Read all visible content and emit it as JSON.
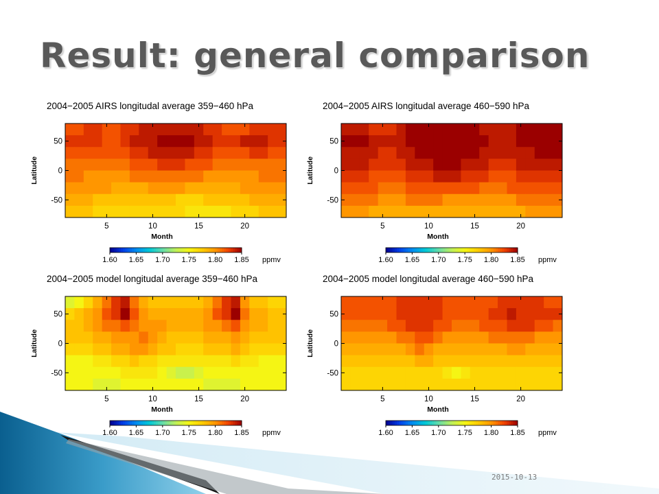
{
  "slide": {
    "title": "Result: general comparison",
    "footer_date": "2015-10-13"
  },
  "chart_data": [
    {
      "type": "heatmap",
      "title": "2004−2005 AIRS longitudal average 359−460 hPa",
      "xlabel": "Month",
      "ylabel": "Latitude",
      "xlim": [
        1,
        24
      ],
      "ylim": [
        -80,
        80
      ],
      "xticks": [
        5,
        10,
        15,
        20
      ],
      "yticks": [
        50,
        0,
        -50
      ],
      "colorbar": {
        "ticks": [
          "1.60",
          "1.65",
          "1.70",
          "1.75",
          "1.80",
          "1.85"
        ],
        "unit": "ppmv",
        "range": [
          1.6,
          1.85
        ]
      },
      "lat_bands": [
        70,
        50,
        30,
        10,
        -10,
        -30,
        -50,
        -70
      ],
      "values": [
        [
          1.82,
          1.82,
          1.83,
          1.83,
          1.82,
          1.82,
          1.83,
          1.83,
          1.84,
          1.84,
          1.84,
          1.84,
          1.84,
          1.84,
          1.84,
          1.83,
          1.83,
          1.82,
          1.82,
          1.82,
          1.83,
          1.83,
          1.83,
          1.83
        ],
        [
          1.83,
          1.83,
          1.83,
          1.83,
          1.82,
          1.82,
          1.83,
          1.84,
          1.84,
          1.84,
          1.85,
          1.85,
          1.85,
          1.85,
          1.84,
          1.84,
          1.83,
          1.83,
          1.83,
          1.84,
          1.84,
          1.84,
          1.83,
          1.83
        ],
        [
          1.82,
          1.82,
          1.82,
          1.82,
          1.82,
          1.82,
          1.82,
          1.83,
          1.83,
          1.84,
          1.84,
          1.84,
          1.84,
          1.84,
          1.83,
          1.83,
          1.82,
          1.82,
          1.82,
          1.82,
          1.83,
          1.83,
          1.82,
          1.82
        ],
        [
          1.81,
          1.81,
          1.81,
          1.81,
          1.81,
          1.81,
          1.81,
          1.82,
          1.82,
          1.82,
          1.83,
          1.83,
          1.83,
          1.82,
          1.82,
          1.82,
          1.81,
          1.81,
          1.81,
          1.81,
          1.81,
          1.81,
          1.81,
          1.81
        ],
        [
          1.81,
          1.81,
          1.8,
          1.8,
          1.8,
          1.8,
          1.8,
          1.81,
          1.81,
          1.81,
          1.81,
          1.81,
          1.81,
          1.81,
          1.81,
          1.8,
          1.8,
          1.8,
          1.8,
          1.8,
          1.8,
          1.81,
          1.81,
          1.81
        ],
        [
          1.8,
          1.8,
          1.8,
          1.8,
          1.8,
          1.79,
          1.79,
          1.79,
          1.79,
          1.8,
          1.8,
          1.8,
          1.8,
          1.79,
          1.79,
          1.79,
          1.79,
          1.79,
          1.79,
          1.8,
          1.8,
          1.8,
          1.8,
          1.8
        ],
        [
          1.79,
          1.79,
          1.79,
          1.78,
          1.78,
          1.78,
          1.78,
          1.78,
          1.78,
          1.78,
          1.78,
          1.78,
          1.77,
          1.77,
          1.77,
          1.78,
          1.78,
          1.78,
          1.78,
          1.78,
          1.79,
          1.79,
          1.79,
          1.79
        ],
        [
          1.78,
          1.78,
          1.78,
          1.77,
          1.77,
          1.77,
          1.77,
          1.77,
          1.77,
          1.77,
          1.77,
          1.77,
          1.77,
          1.76,
          1.76,
          1.76,
          1.76,
          1.76,
          1.77,
          1.77,
          1.77,
          1.78,
          1.78,
          1.78
        ]
      ]
    },
    {
      "type": "heatmap",
      "title": "2004−2005 AIRS longitudal average 460−590 hPa",
      "xlabel": "Month",
      "ylabel": "Latitude",
      "xlim": [
        1,
        24
      ],
      "ylim": [
        -80,
        80
      ],
      "xticks": [
        5,
        10,
        15,
        20
      ],
      "yticks": [
        50,
        0,
        -50
      ],
      "colorbar": {
        "ticks": [
          "1.60",
          "1.65",
          "1.70",
          "1.75",
          "1.80",
          "1.85"
        ],
        "unit": "ppmv",
        "range": [
          1.6,
          1.85
        ]
      },
      "lat_bands": [
        70,
        50,
        30,
        10,
        -10,
        -30,
        -50,
        -70
      ],
      "values": [
        [
          1.84,
          1.84,
          1.84,
          1.83,
          1.83,
          1.83,
          1.84,
          1.85,
          1.85,
          1.85,
          1.85,
          1.85,
          1.85,
          1.85,
          1.85,
          1.84,
          1.84,
          1.84,
          1.84,
          1.85,
          1.85,
          1.85,
          1.85,
          1.85
        ],
        [
          1.85,
          1.85,
          1.85,
          1.84,
          1.84,
          1.84,
          1.84,
          1.85,
          1.85,
          1.85,
          1.85,
          1.85,
          1.85,
          1.85,
          1.85,
          1.85,
          1.84,
          1.84,
          1.84,
          1.85,
          1.85,
          1.85,
          1.85,
          1.85
        ],
        [
          1.84,
          1.84,
          1.84,
          1.84,
          1.83,
          1.83,
          1.84,
          1.84,
          1.85,
          1.85,
          1.85,
          1.85,
          1.85,
          1.85,
          1.85,
          1.84,
          1.84,
          1.84,
          1.84,
          1.84,
          1.84,
          1.85,
          1.85,
          1.85
        ],
        [
          1.84,
          1.84,
          1.84,
          1.83,
          1.83,
          1.83,
          1.83,
          1.84,
          1.84,
          1.84,
          1.85,
          1.85,
          1.85,
          1.84,
          1.84,
          1.84,
          1.83,
          1.83,
          1.83,
          1.84,
          1.84,
          1.84,
          1.84,
          1.84
        ],
        [
          1.83,
          1.83,
          1.83,
          1.82,
          1.82,
          1.82,
          1.82,
          1.83,
          1.83,
          1.83,
          1.84,
          1.84,
          1.84,
          1.83,
          1.83,
          1.83,
          1.82,
          1.82,
          1.82,
          1.83,
          1.83,
          1.83,
          1.83,
          1.83
        ],
        [
          1.82,
          1.82,
          1.82,
          1.82,
          1.81,
          1.81,
          1.81,
          1.82,
          1.82,
          1.82,
          1.82,
          1.82,
          1.82,
          1.82,
          1.82,
          1.81,
          1.81,
          1.81,
          1.82,
          1.82,
          1.82,
          1.82,
          1.82,
          1.82
        ],
        [
          1.81,
          1.81,
          1.81,
          1.81,
          1.8,
          1.8,
          1.8,
          1.81,
          1.81,
          1.81,
          1.81,
          1.8,
          1.8,
          1.8,
          1.8,
          1.8,
          1.8,
          1.8,
          1.8,
          1.81,
          1.81,
          1.81,
          1.81,
          1.81
        ],
        [
          1.8,
          1.8,
          1.8,
          1.79,
          1.79,
          1.79,
          1.79,
          1.79,
          1.79,
          1.79,
          1.79,
          1.79,
          1.79,
          1.79,
          1.79,
          1.79,
          1.79,
          1.79,
          1.79,
          1.79,
          1.8,
          1.8,
          1.8,
          1.8
        ]
      ]
    },
    {
      "type": "heatmap",
      "title": "2004−2005 model longitudal average 359−460 hPa",
      "xlabel": "Month",
      "ylabel": "Latitude",
      "xlim": [
        1,
        24
      ],
      "ylim": [
        -80,
        80
      ],
      "xticks": [
        5,
        10,
        15,
        20
      ],
      "yticks": [
        50,
        0,
        -50
      ],
      "colorbar": {
        "ticks": [
          "1.60",
          "1.65",
          "1.70",
          "1.75",
          "1.80",
          "1.85"
        ],
        "unit": "ppmv",
        "range": [
          1.6,
          1.85
        ]
      },
      "lat_bands": [
        70,
        50,
        30,
        10,
        -10,
        -30,
        -50,
        -70
      ],
      "values": [
        [
          1.74,
          1.75,
          1.77,
          1.79,
          1.81,
          1.83,
          1.84,
          1.81,
          1.79,
          1.78,
          1.78,
          1.78,
          1.78,
          1.78,
          1.78,
          1.79,
          1.81,
          1.83,
          1.84,
          1.8,
          1.78,
          1.78,
          1.77,
          1.77
        ],
        [
          1.77,
          1.78,
          1.79,
          1.8,
          1.82,
          1.83,
          1.85,
          1.82,
          1.8,
          1.79,
          1.79,
          1.79,
          1.79,
          1.79,
          1.79,
          1.8,
          1.82,
          1.83,
          1.85,
          1.81,
          1.79,
          1.79,
          1.78,
          1.78
        ],
        [
          1.78,
          1.78,
          1.79,
          1.8,
          1.81,
          1.81,
          1.82,
          1.81,
          1.8,
          1.8,
          1.8,
          1.79,
          1.79,
          1.79,
          1.79,
          1.8,
          1.8,
          1.81,
          1.82,
          1.8,
          1.79,
          1.79,
          1.78,
          1.78
        ],
        [
          1.78,
          1.78,
          1.78,
          1.79,
          1.79,
          1.8,
          1.8,
          1.8,
          1.81,
          1.8,
          1.79,
          1.78,
          1.78,
          1.78,
          1.78,
          1.79,
          1.79,
          1.79,
          1.8,
          1.79,
          1.78,
          1.78,
          1.78,
          1.78
        ],
        [
          1.77,
          1.77,
          1.77,
          1.78,
          1.78,
          1.79,
          1.79,
          1.8,
          1.8,
          1.79,
          1.78,
          1.78,
          1.77,
          1.77,
          1.77,
          1.78,
          1.78,
          1.78,
          1.79,
          1.78,
          1.77,
          1.77,
          1.77,
          1.77
        ],
        [
          1.75,
          1.75,
          1.75,
          1.76,
          1.76,
          1.77,
          1.77,
          1.78,
          1.77,
          1.77,
          1.76,
          1.76,
          1.76,
          1.76,
          1.76,
          1.76,
          1.76,
          1.76,
          1.77,
          1.76,
          1.76,
          1.75,
          1.75,
          1.75
        ],
        [
          1.75,
          1.75,
          1.75,
          1.75,
          1.75,
          1.75,
          1.76,
          1.76,
          1.76,
          1.76,
          1.75,
          1.74,
          1.73,
          1.73,
          1.74,
          1.75,
          1.75,
          1.75,
          1.75,
          1.75,
          1.75,
          1.75,
          1.75,
          1.75
        ],
        [
          1.75,
          1.75,
          1.75,
          1.74,
          1.74,
          1.74,
          1.75,
          1.75,
          1.75,
          1.75,
          1.75,
          1.75,
          1.75,
          1.75,
          1.75,
          1.74,
          1.74,
          1.74,
          1.74,
          1.75,
          1.75,
          1.75,
          1.75,
          1.75
        ]
      ]
    },
    {
      "type": "heatmap",
      "title": "2004−2005 model longitudal average 460−590 hPa",
      "xlabel": "Month",
      "ylabel": "Latitude",
      "xlim": [
        1,
        24
      ],
      "ylim": [
        -80,
        80
      ],
      "xticks": [
        5,
        10,
        15,
        20
      ],
      "yticks": [
        50,
        0,
        -50
      ],
      "colorbar": {
        "ticks": [
          "1.60",
          "1.65",
          "1.70",
          "1.75",
          "1.80",
          "1.85"
        ],
        "unit": "ppmv",
        "range": [
          1.6,
          1.85
        ]
      },
      "lat_bands": [
        70,
        50,
        30,
        10,
        -10,
        -30,
        -50,
        -70
      ],
      "values": [
        [
          1.82,
          1.82,
          1.82,
          1.82,
          1.82,
          1.82,
          1.83,
          1.83,
          1.83,
          1.83,
          1.83,
          1.82,
          1.82,
          1.82,
          1.82,
          1.82,
          1.82,
          1.83,
          1.83,
          1.83,
          1.83,
          1.83,
          1.82,
          1.82
        ],
        [
          1.82,
          1.82,
          1.82,
          1.82,
          1.82,
          1.82,
          1.83,
          1.83,
          1.83,
          1.83,
          1.83,
          1.82,
          1.82,
          1.82,
          1.82,
          1.82,
          1.83,
          1.83,
          1.84,
          1.83,
          1.83,
          1.83,
          1.83,
          1.83
        ],
        [
          1.81,
          1.81,
          1.81,
          1.81,
          1.81,
          1.82,
          1.82,
          1.83,
          1.83,
          1.83,
          1.82,
          1.82,
          1.81,
          1.81,
          1.81,
          1.82,
          1.82,
          1.82,
          1.83,
          1.83,
          1.83,
          1.82,
          1.82,
          1.81
        ],
        [
          1.8,
          1.8,
          1.8,
          1.8,
          1.8,
          1.8,
          1.81,
          1.81,
          1.82,
          1.82,
          1.81,
          1.8,
          1.8,
          1.8,
          1.8,
          1.8,
          1.81,
          1.81,
          1.81,
          1.81,
          1.81,
          1.8,
          1.8,
          1.8
        ],
        [
          1.79,
          1.79,
          1.79,
          1.79,
          1.79,
          1.79,
          1.79,
          1.8,
          1.81,
          1.8,
          1.79,
          1.79,
          1.79,
          1.79,
          1.79,
          1.79,
          1.79,
          1.79,
          1.8,
          1.8,
          1.79,
          1.79,
          1.79,
          1.79
        ],
        [
          1.78,
          1.78,
          1.78,
          1.78,
          1.78,
          1.78,
          1.78,
          1.78,
          1.79,
          1.79,
          1.78,
          1.78,
          1.78,
          1.78,
          1.78,
          1.78,
          1.78,
          1.78,
          1.78,
          1.78,
          1.78,
          1.78,
          1.78,
          1.78
        ],
        [
          1.77,
          1.77,
          1.77,
          1.77,
          1.77,
          1.77,
          1.77,
          1.77,
          1.77,
          1.77,
          1.77,
          1.76,
          1.75,
          1.76,
          1.77,
          1.77,
          1.77,
          1.77,
          1.77,
          1.77,
          1.77,
          1.77,
          1.77,
          1.77
        ],
        [
          1.77,
          1.77,
          1.77,
          1.77,
          1.77,
          1.77,
          1.77,
          1.77,
          1.77,
          1.77,
          1.77,
          1.77,
          1.77,
          1.77,
          1.77,
          1.77,
          1.77,
          1.77,
          1.77,
          1.77,
          1.77,
          1.77,
          1.77,
          1.77
        ]
      ]
    }
  ]
}
